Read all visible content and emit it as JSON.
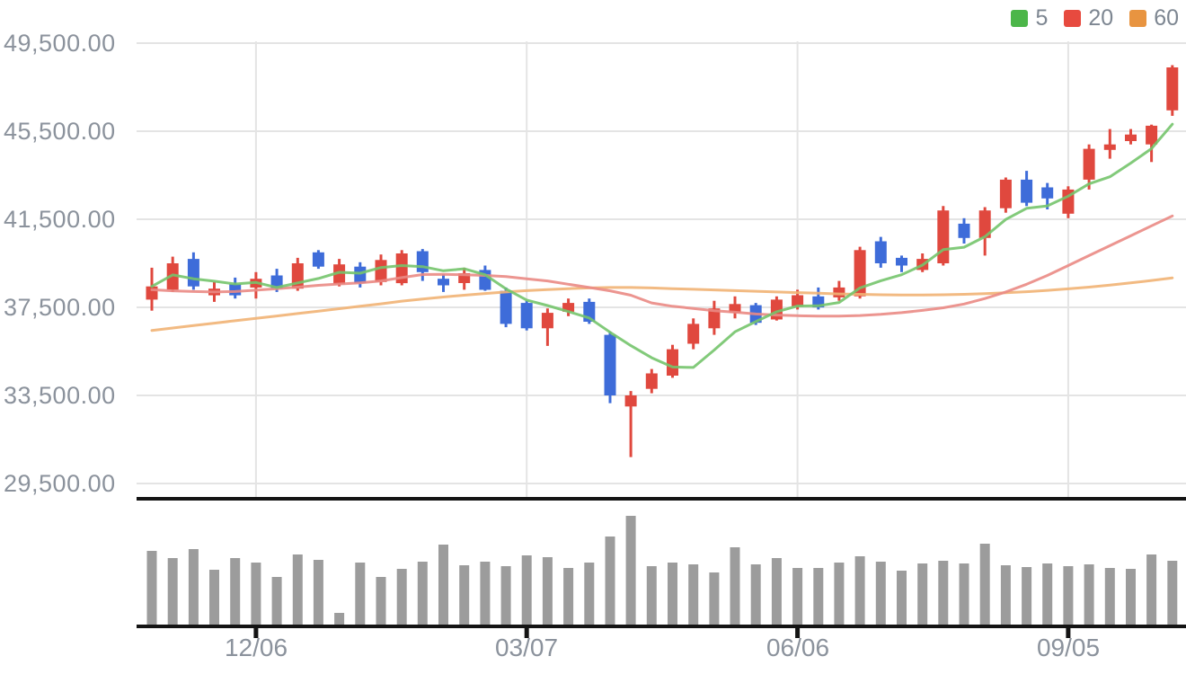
{
  "legend": {
    "items": [
      {
        "label": "5",
        "color": "#4cb649"
      },
      {
        "label": "20",
        "color": "#e74a3f"
      },
      {
        "label": "60",
        "color": "#e89440"
      }
    ]
  },
  "y_axis": {
    "labels": [
      "49,500.00",
      "45,500.00",
      "41,500.00",
      "37,500.00",
      "33,500.00",
      "29,500.00"
    ]
  },
  "x_axis": {
    "labels": [
      "12/06",
      "03/07",
      "06/06",
      "09/05"
    ]
  },
  "chart_data": {
    "type": "candlestick",
    "title": "",
    "legend_entries": [
      "5",
      "20",
      "60"
    ],
    "y_ticks": [
      49500,
      45500,
      41500,
      37500,
      33500,
      29500
    ],
    "ylim": [
      28900,
      50000
    ],
    "grid": true,
    "x_tick_labels": [
      "12/06",
      "03/07",
      "06/06",
      "09/05"
    ],
    "x_tick_candle_indices": [
      5,
      18,
      31,
      44
    ],
    "up_color": "#e0483e",
    "down_color": "#3e6cd9",
    "volume_color": "#9c9c9c",
    "ma_colors": {
      "ma5": "#74c46c",
      "ma20": "#ea8a84",
      "ma60": "#f1b374"
    },
    "columns": [
      "open",
      "high",
      "low",
      "close",
      "volume_rel"
    ],
    "candles": [
      [
        37850,
        39300,
        37350,
        38450,
        84
      ],
      [
        38300,
        39800,
        38200,
        39500,
        76
      ],
      [
        39700,
        40000,
        38300,
        38450,
        86
      ],
      [
        38050,
        38650,
        37750,
        38350,
        63
      ],
      [
        38550,
        38850,
        37900,
        38050,
        76
      ],
      [
        38400,
        39100,
        37900,
        38800,
        71
      ],
      [
        38950,
        39250,
        38200,
        38350,
        55
      ],
      [
        38350,
        39750,
        38250,
        39500,
        80
      ],
      [
        40000,
        40100,
        39250,
        39350,
        74
      ],
      [
        38550,
        39700,
        38450,
        39450,
        15
      ],
      [
        39350,
        39550,
        38400,
        38600,
        71
      ],
      [
        38650,
        39900,
        38500,
        39650,
        55
      ],
      [
        38600,
        40100,
        38500,
        39950,
        64
      ],
      [
        40050,
        40150,
        38700,
        39100,
        72
      ],
      [
        38800,
        39000,
        38200,
        38500,
        91
      ],
      [
        38600,
        39300,
        38300,
        39050,
        68
      ],
      [
        39200,
        39400,
        38250,
        38300,
        72
      ],
      [
        38250,
        38400,
        36600,
        36750,
        67
      ],
      [
        37700,
        37800,
        36450,
        36550,
        79
      ],
      [
        36550,
        37450,
        35750,
        37250,
        77
      ],
      [
        37300,
        37900,
        37100,
        37700,
        65
      ],
      [
        37750,
        37900,
        36750,
        36850,
        71
      ],
      [
        36250,
        36400,
        33150,
        33500,
        100
      ],
      [
        33000,
        33700,
        30700,
        33500,
        123
      ],
      [
        33800,
        34700,
        33600,
        34500,
        67
      ],
      [
        34400,
        35800,
        34300,
        35600,
        71
      ],
      [
        35850,
        37000,
        35600,
        36750,
        69
      ],
      [
        36550,
        37800,
        36250,
        37450,
        60
      ],
      [
        37250,
        38000,
        37000,
        37650,
        88
      ],
      [
        37600,
        37700,
        36700,
        36800,
        69
      ],
      [
        36950,
        38000,
        36900,
        37850,
        76
      ],
      [
        37550,
        38300,
        37400,
        38050,
        65
      ],
      [
        38000,
        38400,
        37400,
        37500,
        65
      ],
      [
        37950,
        38700,
        37800,
        38400,
        71
      ],
      [
        38000,
        40250,
        37900,
        40100,
        78
      ],
      [
        40500,
        40700,
        39300,
        39500,
        72
      ],
      [
        39750,
        39850,
        39100,
        39400,
        62
      ],
      [
        39200,
        39950,
        39100,
        39700,
        70
      ],
      [
        39500,
        42100,
        39400,
        41900,
        73
      ],
      [
        41300,
        41550,
        40400,
        40650,
        70
      ],
      [
        40650,
        42050,
        39850,
        41900,
        92
      ],
      [
        42000,
        43400,
        41800,
        43300,
        68
      ],
      [
        43300,
        43700,
        42100,
        42250,
        66
      ],
      [
        42950,
        43150,
        41950,
        42450,
        70
      ],
      [
        41750,
        43000,
        41550,
        42850,
        67
      ],
      [
        43300,
        44900,
        42850,
        44700,
        69
      ],
      [
        44650,
        45600,
        44250,
        44900,
        65
      ],
      [
        45050,
        45600,
        44900,
        45350,
        64
      ],
      [
        44900,
        45800,
        44100,
        45750,
        80
      ],
      [
        46450,
        48500,
        46200,
        48400,
        73
      ]
    ],
    "ma20_values": [
      38300,
      38250,
      38220,
      38200,
      38220,
      38280,
      38350,
      38420,
      38500,
      38560,
      38610,
      38700,
      38850,
      38990,
      39000,
      38980,
      38950,
      38900,
      38800,
      38700,
      38550,
      38400,
      38250,
      38050,
      37700,
      37550,
      37450,
      37350,
      37280,
      37200,
      37150,
      37120,
      37100,
      37100,
      37130,
      37180,
      37260,
      37360,
      37480,
      37650,
      37900,
      38200,
      38550,
      38950,
      39400,
      39850,
      40300,
      40750,
      41200,
      41650
    ],
    "ma60_values": [
      36450,
      36560,
      36670,
      36780,
      36890,
      37000,
      37110,
      37220,
      37330,
      37440,
      37550,
      37660,
      37780,
      37880,
      37970,
      38050,
      38130,
      38200,
      38260,
      38310,
      38350,
      38380,
      38400,
      38400,
      38380,
      38350,
      38320,
      38290,
      38260,
      38230,
      38200,
      38170,
      38140,
      38110,
      38090,
      38070,
      38060,
      38060,
      38070,
      38090,
      38120,
      38160,
      38210,
      38270,
      38340,
      38420,
      38510,
      38610,
      38720,
      38840
    ],
    "ma5_rule": "rolling_mean_of_close_window_5"
  }
}
